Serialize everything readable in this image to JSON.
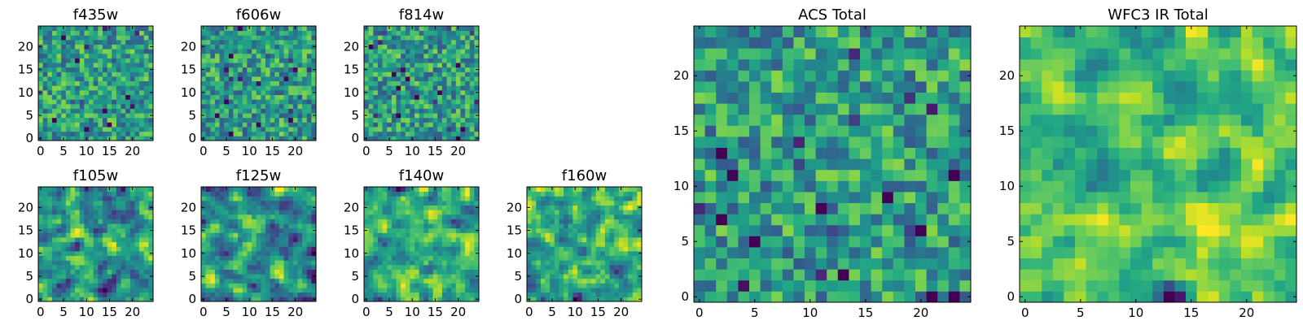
{
  "figure": {
    "colormap": "viridis"
  },
  "chart_data": [
    {
      "type": "heatmap",
      "title": "f435w",
      "grid": [
        25,
        25
      ],
      "seed": 11,
      "smooth": 0,
      "xticks": [
        "0",
        "5",
        "10",
        "15",
        "20"
      ],
      "yticks": [
        "0",
        "5",
        "10",
        "15",
        "20"
      ],
      "xlim": [
        -0.5,
        24.5
      ],
      "ylim": [
        -0.5,
        24.5
      ]
    },
    {
      "type": "heatmap",
      "title": "f606w",
      "grid": [
        25,
        25
      ],
      "seed": 23,
      "smooth": 0,
      "xticks": [
        "0",
        "5",
        "10",
        "15",
        "20"
      ],
      "yticks": [
        "0",
        "5",
        "10",
        "15",
        "20"
      ],
      "xlim": [
        -0.5,
        24.5
      ],
      "ylim": [
        -0.5,
        24.5
      ]
    },
    {
      "type": "heatmap",
      "title": "f814w",
      "grid": [
        25,
        25
      ],
      "seed": 37,
      "smooth": 0,
      "xticks": [
        "0",
        "5",
        "10",
        "15",
        "20"
      ],
      "yticks": [
        "0",
        "5",
        "10",
        "15",
        "20"
      ],
      "xlim": [
        -0.5,
        24.5
      ],
      "ylim": [
        -0.5,
        24.5
      ]
    },
    {
      "type": "heatmap",
      "title": "f105w",
      "grid": [
        25,
        25
      ],
      "seed": 41,
      "smooth": 1,
      "xticks": [
        "0",
        "5",
        "10",
        "15",
        "20"
      ],
      "yticks": [
        "0",
        "5",
        "10",
        "15",
        "20"
      ],
      "xlim": [
        -0.5,
        24.5
      ],
      "ylim": [
        -0.5,
        24.5
      ]
    },
    {
      "type": "heatmap",
      "title": "f125w",
      "grid": [
        25,
        25
      ],
      "seed": 53,
      "smooth": 1,
      "xticks": [
        "0",
        "5",
        "10",
        "15",
        "20"
      ],
      "yticks": [
        "0",
        "5",
        "10",
        "15",
        "20"
      ],
      "xlim": [
        -0.5,
        24.5
      ],
      "ylim": [
        -0.5,
        24.5
      ]
    },
    {
      "type": "heatmap",
      "title": "f140w",
      "grid": [
        25,
        25
      ],
      "seed": 67,
      "smooth": 1,
      "xticks": [
        "0",
        "5",
        "10",
        "15",
        "20"
      ],
      "yticks": [
        "0",
        "5",
        "10",
        "15",
        "20"
      ],
      "xlim": [
        -0.5,
        24.5
      ],
      "ylim": [
        -0.5,
        24.5
      ]
    },
    {
      "type": "heatmap",
      "title": "f160w",
      "grid": [
        25,
        25
      ],
      "seed": 79,
      "smooth": 1,
      "xticks": [
        "0",
        "5",
        "10",
        "15",
        "20"
      ],
      "yticks": [
        "0",
        "5",
        "10",
        "15",
        "20"
      ],
      "xlim": [
        -0.5,
        24.5
      ],
      "ylim": [
        -0.5,
        24.5
      ]
    },
    {
      "type": "heatmap",
      "title": "ACS Total",
      "grid": [
        25,
        25
      ],
      "seed": 83,
      "smooth": 0,
      "xticks": [
        "0",
        "5",
        "10",
        "15",
        "20"
      ],
      "yticks": [
        "0",
        "5",
        "10",
        "15",
        "20"
      ],
      "xlim": [
        -0.5,
        24.5
      ],
      "ylim": [
        -0.5,
        24.5
      ]
    },
    {
      "type": "heatmap",
      "title": "WFC3 IR Total",
      "grid": [
        25,
        25
      ],
      "seed": 97,
      "smooth": 1,
      "xticks": [
        "0",
        "5",
        "10",
        "15",
        "20"
      ],
      "yticks": [
        "0",
        "5",
        "10",
        "15",
        "20"
      ],
      "xlim": [
        -0.5,
        24.5
      ],
      "ylim": [
        -0.5,
        24.5
      ]
    }
  ]
}
